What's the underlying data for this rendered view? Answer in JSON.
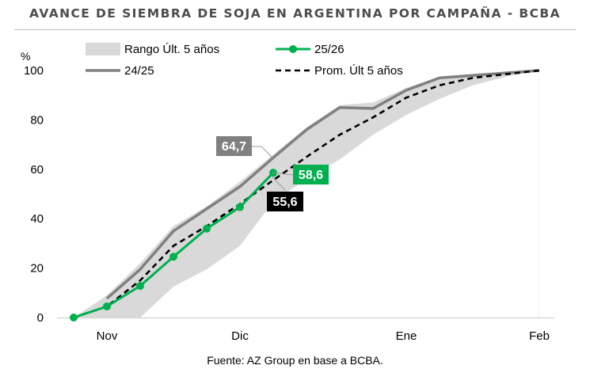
{
  "title": "AVANCE DE SIEMBRA DE SOJA EN ARGENTINA POR CAMPAÑA - BCBA",
  "source": "Fuente: AZ Group en base a BCBA.",
  "chart_data": {
    "type": "line",
    "ylabel": "%",
    "ylim": [
      0,
      100
    ],
    "yticks": [
      0,
      20,
      40,
      60,
      80,
      100
    ],
    "xlim": [
      -1,
      13
    ],
    "xunit": "weeks from start of Nov",
    "xticks": [
      {
        "x": 0,
        "label": "Nov"
      },
      {
        "x": 4,
        "label": "Dic"
      },
      {
        "x": 9,
        "label": "Ene"
      },
      {
        "x": 13,
        "label": "Feb"
      }
    ],
    "legend": {
      "placement": "top-left",
      "entries": [
        "Rango Últ. 5 años",
        "25/26",
        "24/25",
        "Prom. Últ 5 años"
      ]
    },
    "range": {
      "name": "Rango Últ. 5 años",
      "color": "#d9d9d9",
      "x": [
        -1,
        0,
        1,
        2,
        3,
        4,
        5,
        6,
        7,
        8,
        9,
        10,
        11,
        12,
        13
      ],
      "upper": [
        0,
        9,
        22,
        37,
        45,
        55,
        66,
        77,
        86,
        87,
        93,
        97.5,
        98.5,
        99.3,
        100
      ],
      "lower": [
        0,
        0,
        0,
        12.5,
        19.5,
        29,
        47,
        56,
        64,
        74,
        82,
        88.5,
        94,
        97.5,
        100
      ]
    },
    "series": [
      {
        "name": "25/26",
        "color": "#00b050",
        "x": [
          -1,
          0,
          1,
          2,
          3,
          4,
          5
        ],
        "values": [
          0,
          4.5,
          12.8,
          24.6,
          36,
          44.7,
          58.6
        ],
        "label": "58,6"
      },
      {
        "name": "24/25",
        "color": "#808080",
        "x": [
          0,
          1,
          2,
          3,
          4,
          5,
          6,
          7,
          8,
          9,
          10,
          11,
          12,
          13
        ],
        "values": [
          7.7,
          19.5,
          35,
          44,
          53,
          64.7,
          76,
          85,
          84.6,
          92,
          97,
          98,
          99,
          100
        ],
        "label": "64,7"
      },
      {
        "name": "Prom. Últ 5 años",
        "color": "#000000",
        "x": [
          -1,
          0,
          1,
          2,
          3,
          4,
          5,
          6,
          7,
          8,
          9,
          10,
          11,
          12,
          13
        ],
        "values": [
          0,
          4.5,
          15,
          29,
          37,
          46,
          55.6,
          65,
          74,
          81,
          89,
          94,
          97,
          98.5,
          100
        ],
        "label": "55,6"
      }
    ]
  }
}
